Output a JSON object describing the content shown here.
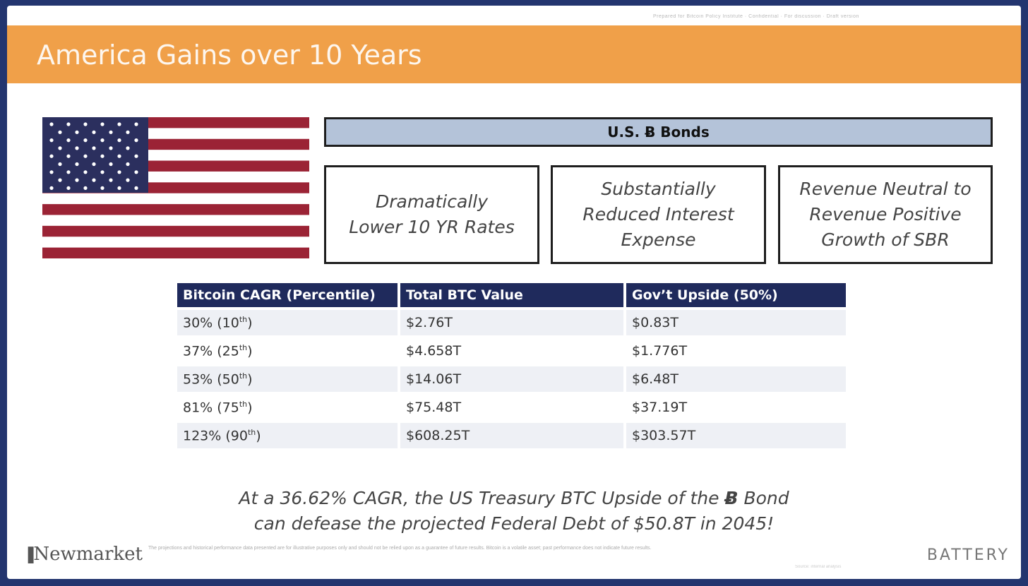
{
  "slide": {
    "title": "America Gains over 10 Years",
    "top_fineprint": "Prepared for Bitcoin Policy Institute · Confidential · For discussion · Draft version",
    "bonds_heading": "U.S. Ƀ Bonds",
    "benefits": [
      {
        "line1": "Dramatically",
        "line2": "Lower 10 YR Rates",
        "line3": ""
      },
      {
        "line1": "Substantially",
        "line2": "Reduced Interest",
        "line3": "Expense"
      },
      {
        "line1": "Revenue Neutral to",
        "line2": "Revenue Positive",
        "line3": "Growth of SBR"
      }
    ],
    "note_line1_pre": "At a 36.62% CAGR, the US Treasury BTC Upside of the ",
    "note_bond_symbol": "Ƀ",
    "note_line1_post": " Bond",
    "note_line2": "can defease the projected Federal Debt of $50.8T in 2045!",
    "left_logo": "Newmarket",
    "disclaimer": "The projections and historical performance data presented are for illustrative purposes only and should not be relied upon as a guarantee of future results. Bitcoin is a volatile asset; past performance does not indicate future results.",
    "right_logo": "BATTERY",
    "bottom_fineprint": "Source: internal analysis"
  },
  "table": {
    "headers": [
      "Bitcoin CAGR (Percentile)",
      "Total BTC Value",
      "Gov’t Upside (50%)"
    ],
    "rows": [
      {
        "cagr": "30% (10",
        "sup": "th",
        "close": ")",
        "total": "$2.76T",
        "upside": "$0.83T"
      },
      {
        "cagr": "37% (25",
        "sup": "th",
        "close": ")",
        "total": "$4.658T",
        "upside": "$1.776T"
      },
      {
        "cagr": "53% (50",
        "sup": "th",
        "close": ")",
        "total": "$14.06T",
        "upside": "$6.48T"
      },
      {
        "cagr": "81% (75",
        "sup": "th",
        "close": ")",
        "total": "$75.48T",
        "upside": "$37.19T"
      },
      {
        "cagr": "123% (90",
        "sup": "th",
        "close": ")",
        "total": "$608.25T",
        "upside": "$303.57T"
      }
    ]
  },
  "colors": {
    "title_bar": "#f0a049",
    "table_header": "#1f2a5c",
    "bonds_header": "#b4c3d9",
    "flag_red": "#9b2335",
    "flag_blue": "#2b2f5e"
  },
  "icons": [
    "us-flag-icon"
  ]
}
